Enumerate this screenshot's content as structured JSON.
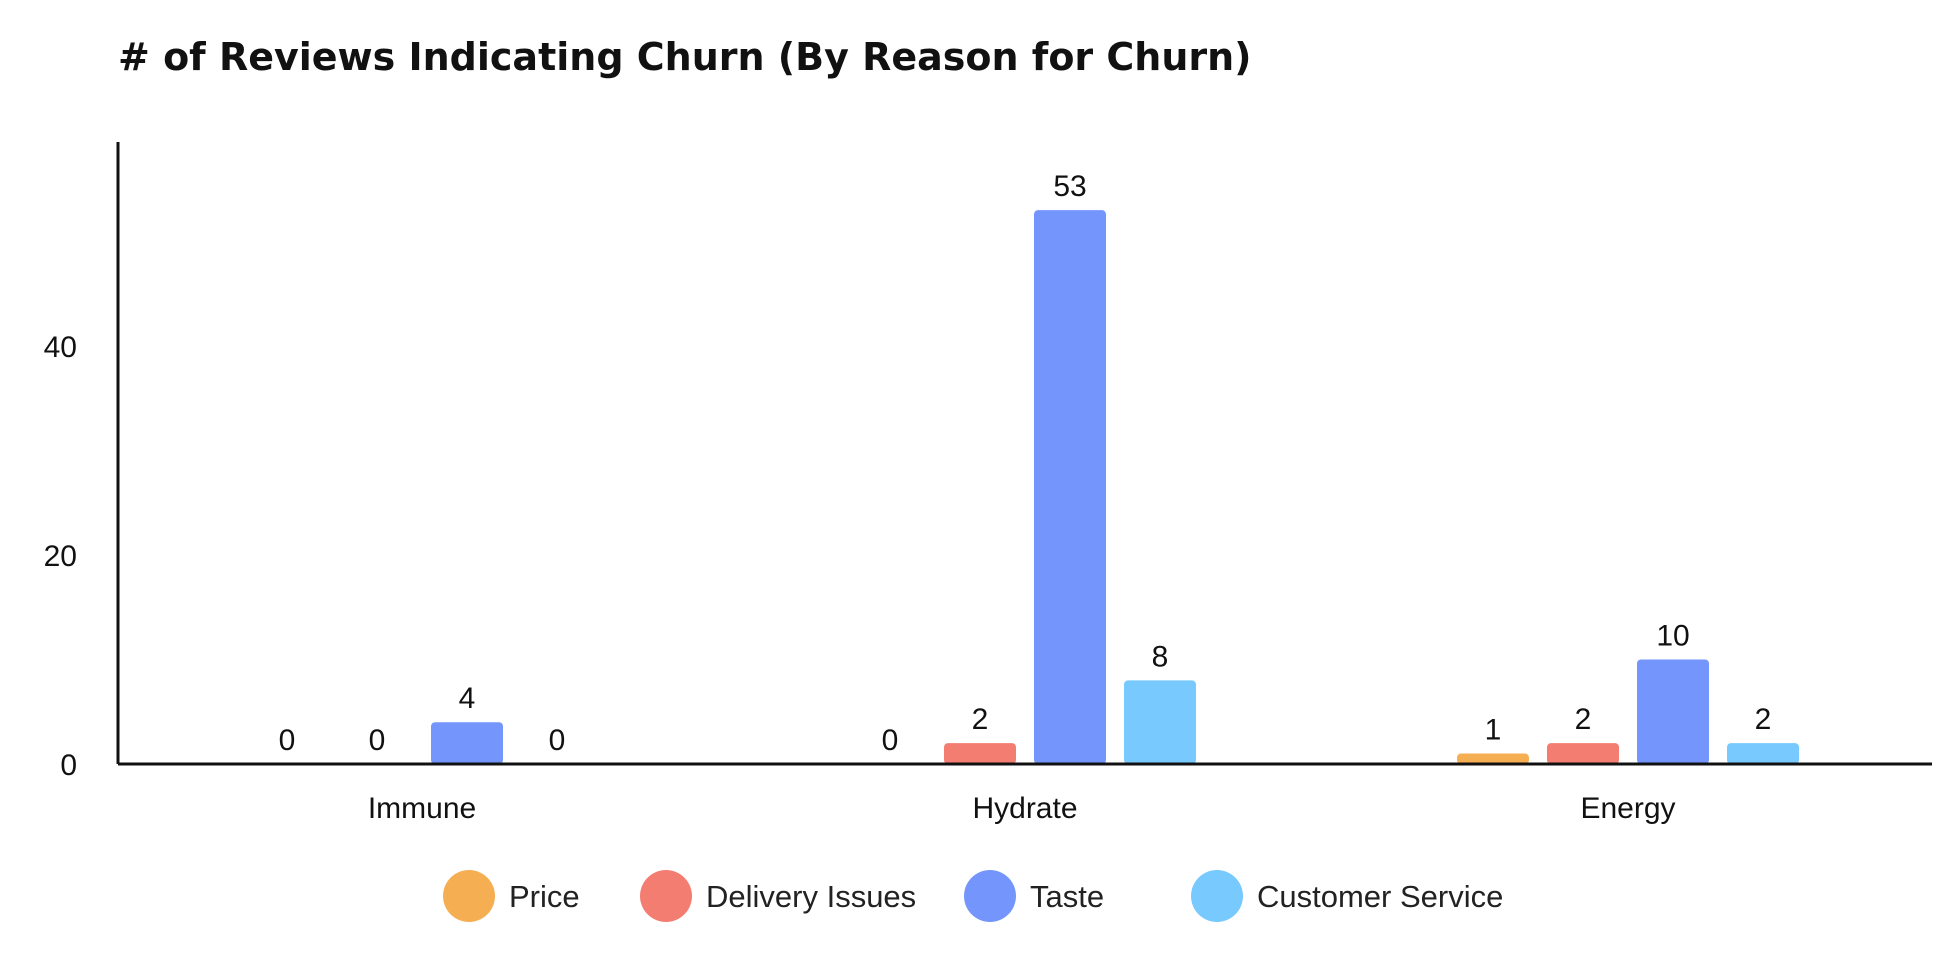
{
  "chart_data": {
    "type": "bar",
    "title": "# of Reviews Indicating Churn (By Reason for Churn)",
    "xlabel": "",
    "ylabel": "",
    "categories": [
      "Immune",
      "Hydrate",
      "Energy"
    ],
    "series": [
      {
        "name": "Price",
        "color": "#F6AE53",
        "values": [
          0,
          0,
          1
        ]
      },
      {
        "name": "Delivery Issues",
        "color": "#F47D71",
        "values": [
          0,
          2,
          2
        ]
      },
      {
        "name": "Taste",
        "color": "#7496FC",
        "values": [
          4,
          53,
          10
        ]
      },
      {
        "name": "Customer Service",
        "color": "#78C9FD",
        "values": [
          0,
          8,
          2
        ]
      }
    ],
    "ylim": [
      0,
      60
    ],
    "yticks": [
      0,
      20,
      40
    ],
    "grid": false,
    "legend_position": "bottom"
  }
}
